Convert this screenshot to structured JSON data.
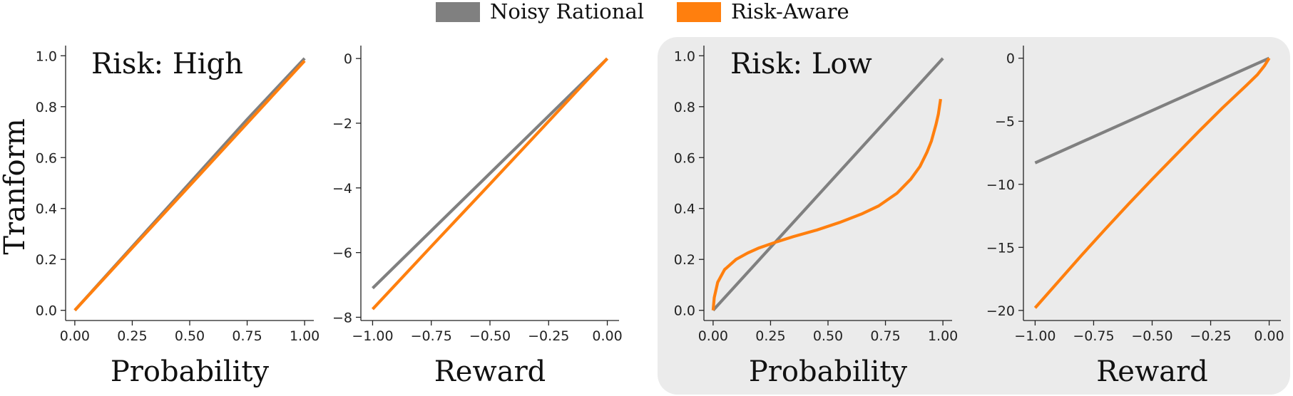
{
  "legend": [
    {
      "name": "Noisy Rational",
      "color": "#808080"
    },
    {
      "name": "Risk-Aware",
      "color": "#ff7f0e"
    }
  ],
  "ylabel": "Tranform",
  "colors": {
    "noisy": "#808080",
    "risk": "#ff7f0e",
    "highlight_bg": "#ebebeb"
  },
  "chart_data": [
    {
      "type": "line",
      "title": "Risk: High",
      "xlabel": "Probability",
      "xlim": [
        -0.04,
        1.04
      ],
      "ylim": [
        -0.04,
        1.04
      ],
      "xticks": [
        0,
        0.25,
        0.5,
        0.75,
        1.0
      ],
      "xtick_labels": [
        "0.00",
        "0.25",
        "0.50",
        "0.75",
        "1.00"
      ],
      "yticks": [
        0,
        0.2,
        0.4,
        0.6,
        0.8,
        1.0
      ],
      "ytick_labels": [
        "0.0",
        "0.2",
        "0.4",
        "0.6",
        "0.8",
        "1.0"
      ],
      "series": [
        {
          "name": "Noisy Rational",
          "x": [
            0,
            0.25,
            0.5,
            0.75,
            1.0
          ],
          "y": [
            0,
            0.25,
            0.5,
            0.75,
            0.99
          ]
        },
        {
          "name": "Risk-Aware",
          "x": [
            0,
            0.25,
            0.5,
            0.75,
            1.0
          ],
          "y": [
            0,
            0.245,
            0.49,
            0.735,
            0.98
          ]
        }
      ]
    },
    {
      "type": "line",
      "title": "",
      "xlabel": "Reward",
      "xlim": [
        -1.05,
        0.05
      ],
      "ylim": [
        -8.1,
        0.4
      ],
      "xticks": [
        -1,
        -0.75,
        -0.5,
        -0.25,
        0
      ],
      "xtick_labels": [
        "−1.00",
        "−0.75",
        "−0.50",
        "−0.25",
        "0.00"
      ],
      "yticks": [
        0,
        -2,
        -4,
        -6,
        -8
      ],
      "ytick_labels": [
        "0",
        "−2",
        "−4",
        "−6",
        "−8"
      ],
      "series": [
        {
          "name": "Noisy Rational",
          "x": [
            -1,
            -0.75,
            -0.5,
            -0.25,
            0
          ],
          "y": [
            -7.1,
            -5.325,
            -3.55,
            -1.775,
            0
          ]
        },
        {
          "name": "Risk-Aware",
          "x": [
            -1,
            -0.75,
            -0.5,
            -0.25,
            0
          ],
          "y": [
            -7.75,
            -5.81,
            -3.88,
            -1.94,
            0
          ]
        }
      ]
    },
    {
      "type": "line",
      "title": "Risk: Low",
      "xlabel": "Probability",
      "xlim": [
        -0.04,
        1.04
      ],
      "ylim": [
        -0.04,
        1.04
      ],
      "xticks": [
        0,
        0.25,
        0.5,
        0.75,
        1.0
      ],
      "xtick_labels": [
        "0.00",
        "0.25",
        "0.50",
        "0.75",
        "1.00"
      ],
      "yticks": [
        0,
        0.2,
        0.4,
        0.6,
        0.8,
        1.0
      ],
      "ytick_labels": [
        "0.0",
        "0.2",
        "0.4",
        "0.6",
        "0.8",
        "1.0"
      ],
      "series": [
        {
          "name": "Noisy Rational",
          "x": [
            0,
            1.0
          ],
          "y": [
            0,
            0.99
          ]
        },
        {
          "name": "Risk-Aware",
          "x": [
            0,
            0.005,
            0.02,
            0.05,
            0.1,
            0.15,
            0.2,
            0.28,
            0.35,
            0.45,
            0.55,
            0.65,
            0.72,
            0.8,
            0.86,
            0.9,
            0.93,
            0.95,
            0.97,
            0.98,
            0.99
          ],
          "y": [
            0,
            0.05,
            0.11,
            0.16,
            0.2,
            0.225,
            0.245,
            0.27,
            0.29,
            0.315,
            0.345,
            0.38,
            0.41,
            0.46,
            0.515,
            0.565,
            0.62,
            0.665,
            0.73,
            0.77,
            0.83
          ]
        }
      ]
    },
    {
      "type": "line",
      "title": "",
      "xlabel": "Reward",
      "xlim": [
        -1.05,
        0.05
      ],
      "ylim": [
        -20.8,
        1.0
      ],
      "xticks": [
        -1,
        -0.75,
        -0.5,
        -0.25,
        0
      ],
      "xtick_labels": [
        "−1.00",
        "−0.75",
        "−0.50",
        "−0.25",
        "0.00"
      ],
      "yticks": [
        0,
        -5,
        -10,
        -15,
        -20
      ],
      "ytick_labels": [
        "0",
        "−5",
        "−10",
        "−15",
        "−20"
      ],
      "series": [
        {
          "name": "Noisy Rational",
          "x": [
            -1,
            0
          ],
          "y": [
            -8.3,
            0
          ]
        },
        {
          "name": "Risk-Aware",
          "x": [
            -1,
            -0.9,
            -0.8,
            -0.7,
            -0.6,
            -0.5,
            -0.4,
            -0.3,
            -0.2,
            -0.1,
            -0.05,
            -0.02,
            0
          ],
          "y": [
            -19.8,
            -17.7,
            -15.6,
            -13.55,
            -11.55,
            -9.6,
            -7.7,
            -5.8,
            -3.95,
            -2.2,
            -1.3,
            -0.6,
            0
          ]
        }
      ]
    }
  ]
}
